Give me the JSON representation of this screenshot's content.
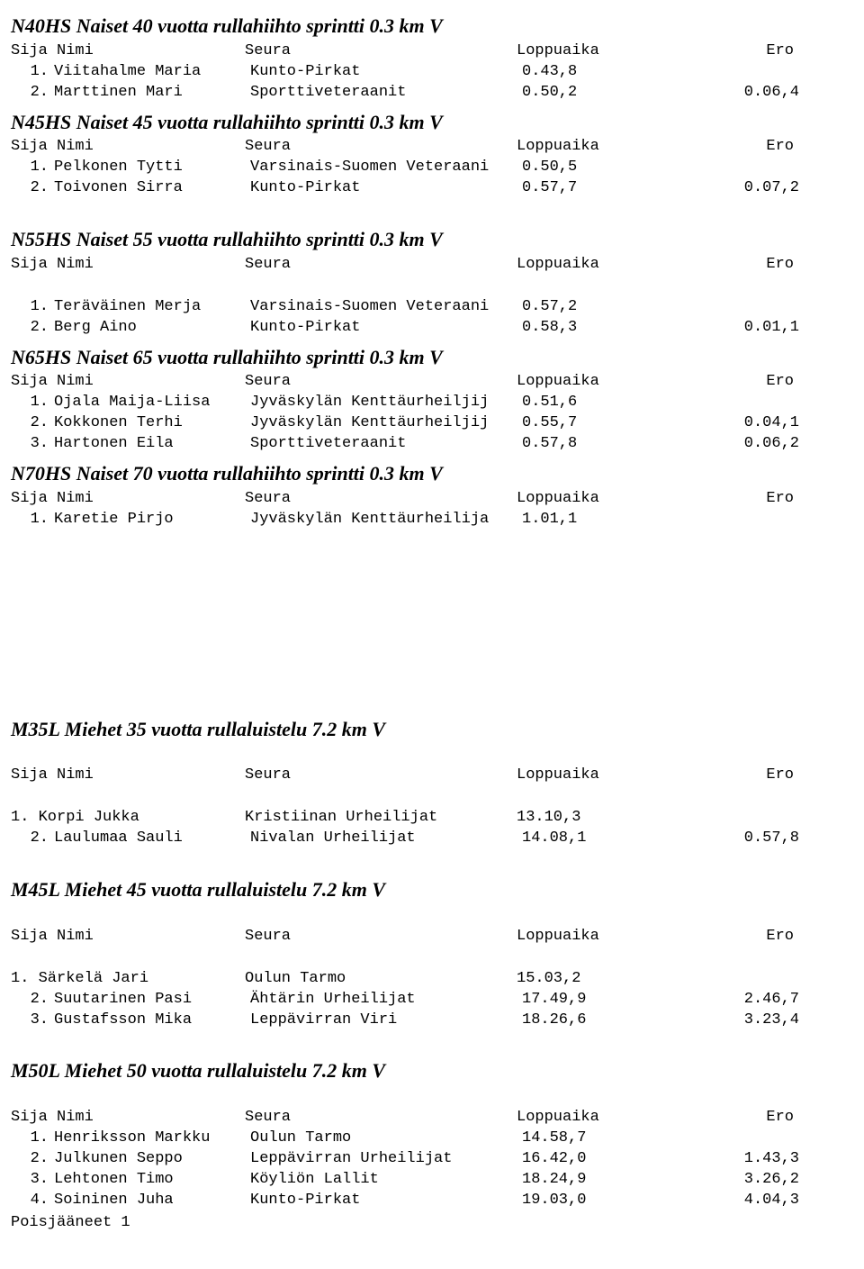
{
  "labels": {
    "sija_nimi": "Sija Nimi",
    "seura": "Seura",
    "loppuaika": "Loppuaika",
    "ero": "Ero",
    "poisjaaneet": "Poisjääneet   1"
  },
  "sections": [
    {
      "title": "N40HS Naiset 40 vuotta rullahiihto sprintti  0.3 km V",
      "rows": [
        {
          "sija": "1.",
          "nimi": "Viitahalme Maria",
          "seura": "Kunto-Pirkat",
          "loppu": "0.43,8",
          "ero": ""
        },
        {
          "sija": "2.",
          "nimi": "Marttinen Mari",
          "seura": "Sporttiveteraanit",
          "loppu": "0.50,2",
          "ero": "0.06,4"
        }
      ]
    },
    {
      "title": "N45HS Naiset 45 vuotta rullahiihto sprintti 0.3 km V",
      "rows": [
        {
          "sija": "1.",
          "nimi": "Pelkonen Tytti",
          "seura": "Varsinais-Suomen Veteraani",
          "loppu": "0.50,5",
          "ero": ""
        },
        {
          "sija": "2.",
          "nimi": "Toivonen Sirra",
          "seura": "Kunto-Pirkat",
          "loppu": "0.57,7",
          "ero": "0.07,2"
        }
      ]
    },
    {
      "title": "N55HS Naiset 55 vuotta rullahiihto sprintti 0.3 km V",
      "gap_before": "md",
      "gap_after_header": true,
      "rows": [
        {
          "sija": "1.",
          "nimi": "Teräväinen Merja",
          "seura": "Varsinais-Suomen Veteraani",
          "loppu": "0.57,2",
          "ero": ""
        },
        {
          "sija": "2.",
          "nimi": "Berg Aino",
          "seura": "Kunto-Pirkat",
          "loppu": "0.58,3",
          "ero": "0.01,1"
        }
      ]
    },
    {
      "title": "N65HS Naiset 65 vuotta rullahiihto sprintti 0.3 km V",
      "rows": [
        {
          "sija": "1.",
          "nimi": "Ojala Maija-Liisa",
          "seura": "Jyväskylän Kenttäurheiljij",
          "loppu": "0.51,6",
          "ero": ""
        },
        {
          "sija": "2.",
          "nimi": "Kokkonen Terhi",
          "seura": "Jyväskylän Kenttäurheiljij",
          "loppu": "0.55,7",
          "ero": "0.04,1"
        },
        {
          "sija": "3.",
          "nimi": "Hartonen Eila",
          "seura": "Sporttiveteraanit",
          "loppu": "0.57,8",
          "ero": "0.06,2"
        }
      ]
    },
    {
      "title": "N70HS Naiset 70 vuotta rullahiihto sprintti 0.3 km V",
      "rows": [
        {
          "sija": "1.",
          "nimi": "Karetie Pirjo",
          "seura": "Jyväskylän Kenttäurheilija",
          "loppu": "1.01,1",
          "ero": ""
        }
      ]
    },
    {
      "title": "M35L Miehet 35 vuotta rullaluistelu 7.2 km V",
      "gap_before": "lg",
      "gap_after_header": true,
      "header_gap_before": true,
      "rows": [
        {
          "sija": "1.",
          "nimi": "Korpi Jukka",
          "seura": "Kristiinan Urheilijat",
          "loppu": "13.10,3",
          "ero": "",
          "flush": true
        },
        {
          "sija": "",
          "nimi": "",
          "seura": "",
          "loppu": "",
          "ero": ""
        },
        {
          "sija": "2.",
          "nimi": "Laulumaa Sauli",
          "seura": "Nivalan Urheilijat",
          "loppu": "14.08,1",
          "ero": "0.57,8"
        }
      ]
    },
    {
      "title": "M45L Miehet 45 vuotta rullaluistelu 7.2 km V",
      "gap_before": "md",
      "gap_after_header": true,
      "header_gap_before": true,
      "rows": [
        {
          "sija": "1.",
          "nimi": "Särkelä Jari",
          "seura": "Oulun Tarmo",
          "loppu": "15.03,2",
          "ero": "",
          "flush": true
        },
        {
          "sija": "",
          "nimi": "",
          "seura": "",
          "loppu": "",
          "ero": ""
        },
        {
          "sija": "2.",
          "nimi": "Suutarinen Pasi",
          "seura": "Ähtärin Urheilijat",
          "loppu": "17.49,9",
          "ero": "2.46,7"
        },
        {
          "sija": "3.",
          "nimi": "Gustafsson Mika",
          "seura": "Leppävirran Viri",
          "loppu": "18.26,6",
          "ero": "3.23,4"
        }
      ]
    },
    {
      "title": "M50L Miehet 50 vuotta rullaluistelu 7.2 km V",
      "gap_before": "md",
      "header_gap_before": true,
      "rows": [
        {
          "sija": "1.",
          "nimi": "Henriksson Markku",
          "seura": "Oulun Tarmo",
          "loppu": "14.58,7",
          "ero": ""
        },
        {
          "sija": "2.",
          "nimi": "Julkunen Seppo",
          "seura": "Leppävirran Urheilijat",
          "loppu": "16.42,0",
          "ero": "1.43,3"
        },
        {
          "sija": "3.",
          "nimi": "Lehtonen Timo",
          "seura": "Köyliön Lallit",
          "loppu": "18.24,9",
          "ero": "3.26,2"
        },
        {
          "sija": "4.",
          "nimi": "Soininen Juha",
          "seura": "Kunto-Pirkat",
          "loppu": "19.03,0",
          "ero": "4.04,3"
        }
      ],
      "footer": "poisjaaneet"
    }
  ]
}
